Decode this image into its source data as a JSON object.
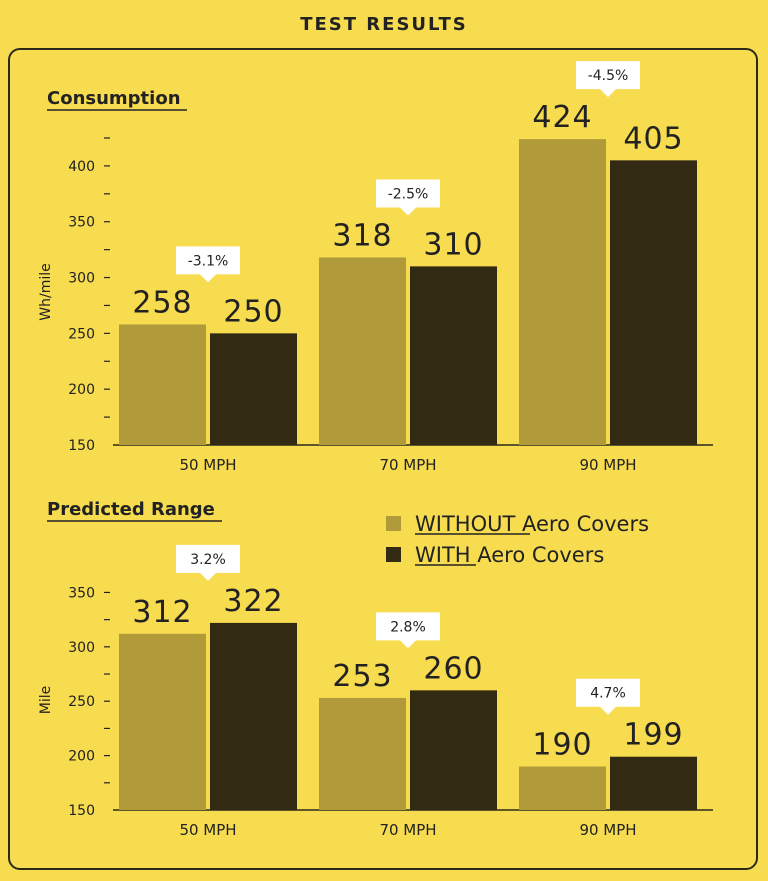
{
  "page_title": "TEST RESULTS",
  "colors": {
    "without": "#b09a3a",
    "with": "#332a14",
    "background": "#f8dc50",
    "axis": "#2b2a1a"
  },
  "legend": {
    "without_emph": "WITHOUT",
    "without_rest": " Aero Covers",
    "with_emph": "WITH",
    "with_rest": " Aero Covers"
  },
  "chart_data": [
    {
      "type": "bar",
      "title": "Consumption",
      "ylabel": "Wh/mile",
      "ylim": [
        150,
        425
      ],
      "yticks": [
        150,
        200,
        250,
        300,
        350,
        400
      ],
      "categories": [
        "50 MPH",
        "70 MPH",
        "90 MPH"
      ],
      "series": [
        {
          "key": "without",
          "values": [
            258,
            318,
            424
          ]
        },
        {
          "key": "with",
          "values": [
            250,
            310,
            405
          ]
        }
      ],
      "changes": [
        "-3.1%",
        "-2.5%",
        "-4.5%"
      ]
    },
    {
      "type": "bar",
      "title": "Predicted Range",
      "ylabel": "Mile",
      "ylim": [
        150,
        355
      ],
      "yticks": [
        150,
        200,
        250,
        300,
        350
      ],
      "categories": [
        "50 MPH",
        "70 MPH",
        "90 MPH"
      ],
      "series": [
        {
          "key": "without",
          "values": [
            312,
            253,
            190
          ]
        },
        {
          "key": "with",
          "values": [
            322,
            260,
            199
          ]
        }
      ],
      "changes": [
        "3.2%",
        "2.8%",
        "4.7%"
      ]
    }
  ]
}
